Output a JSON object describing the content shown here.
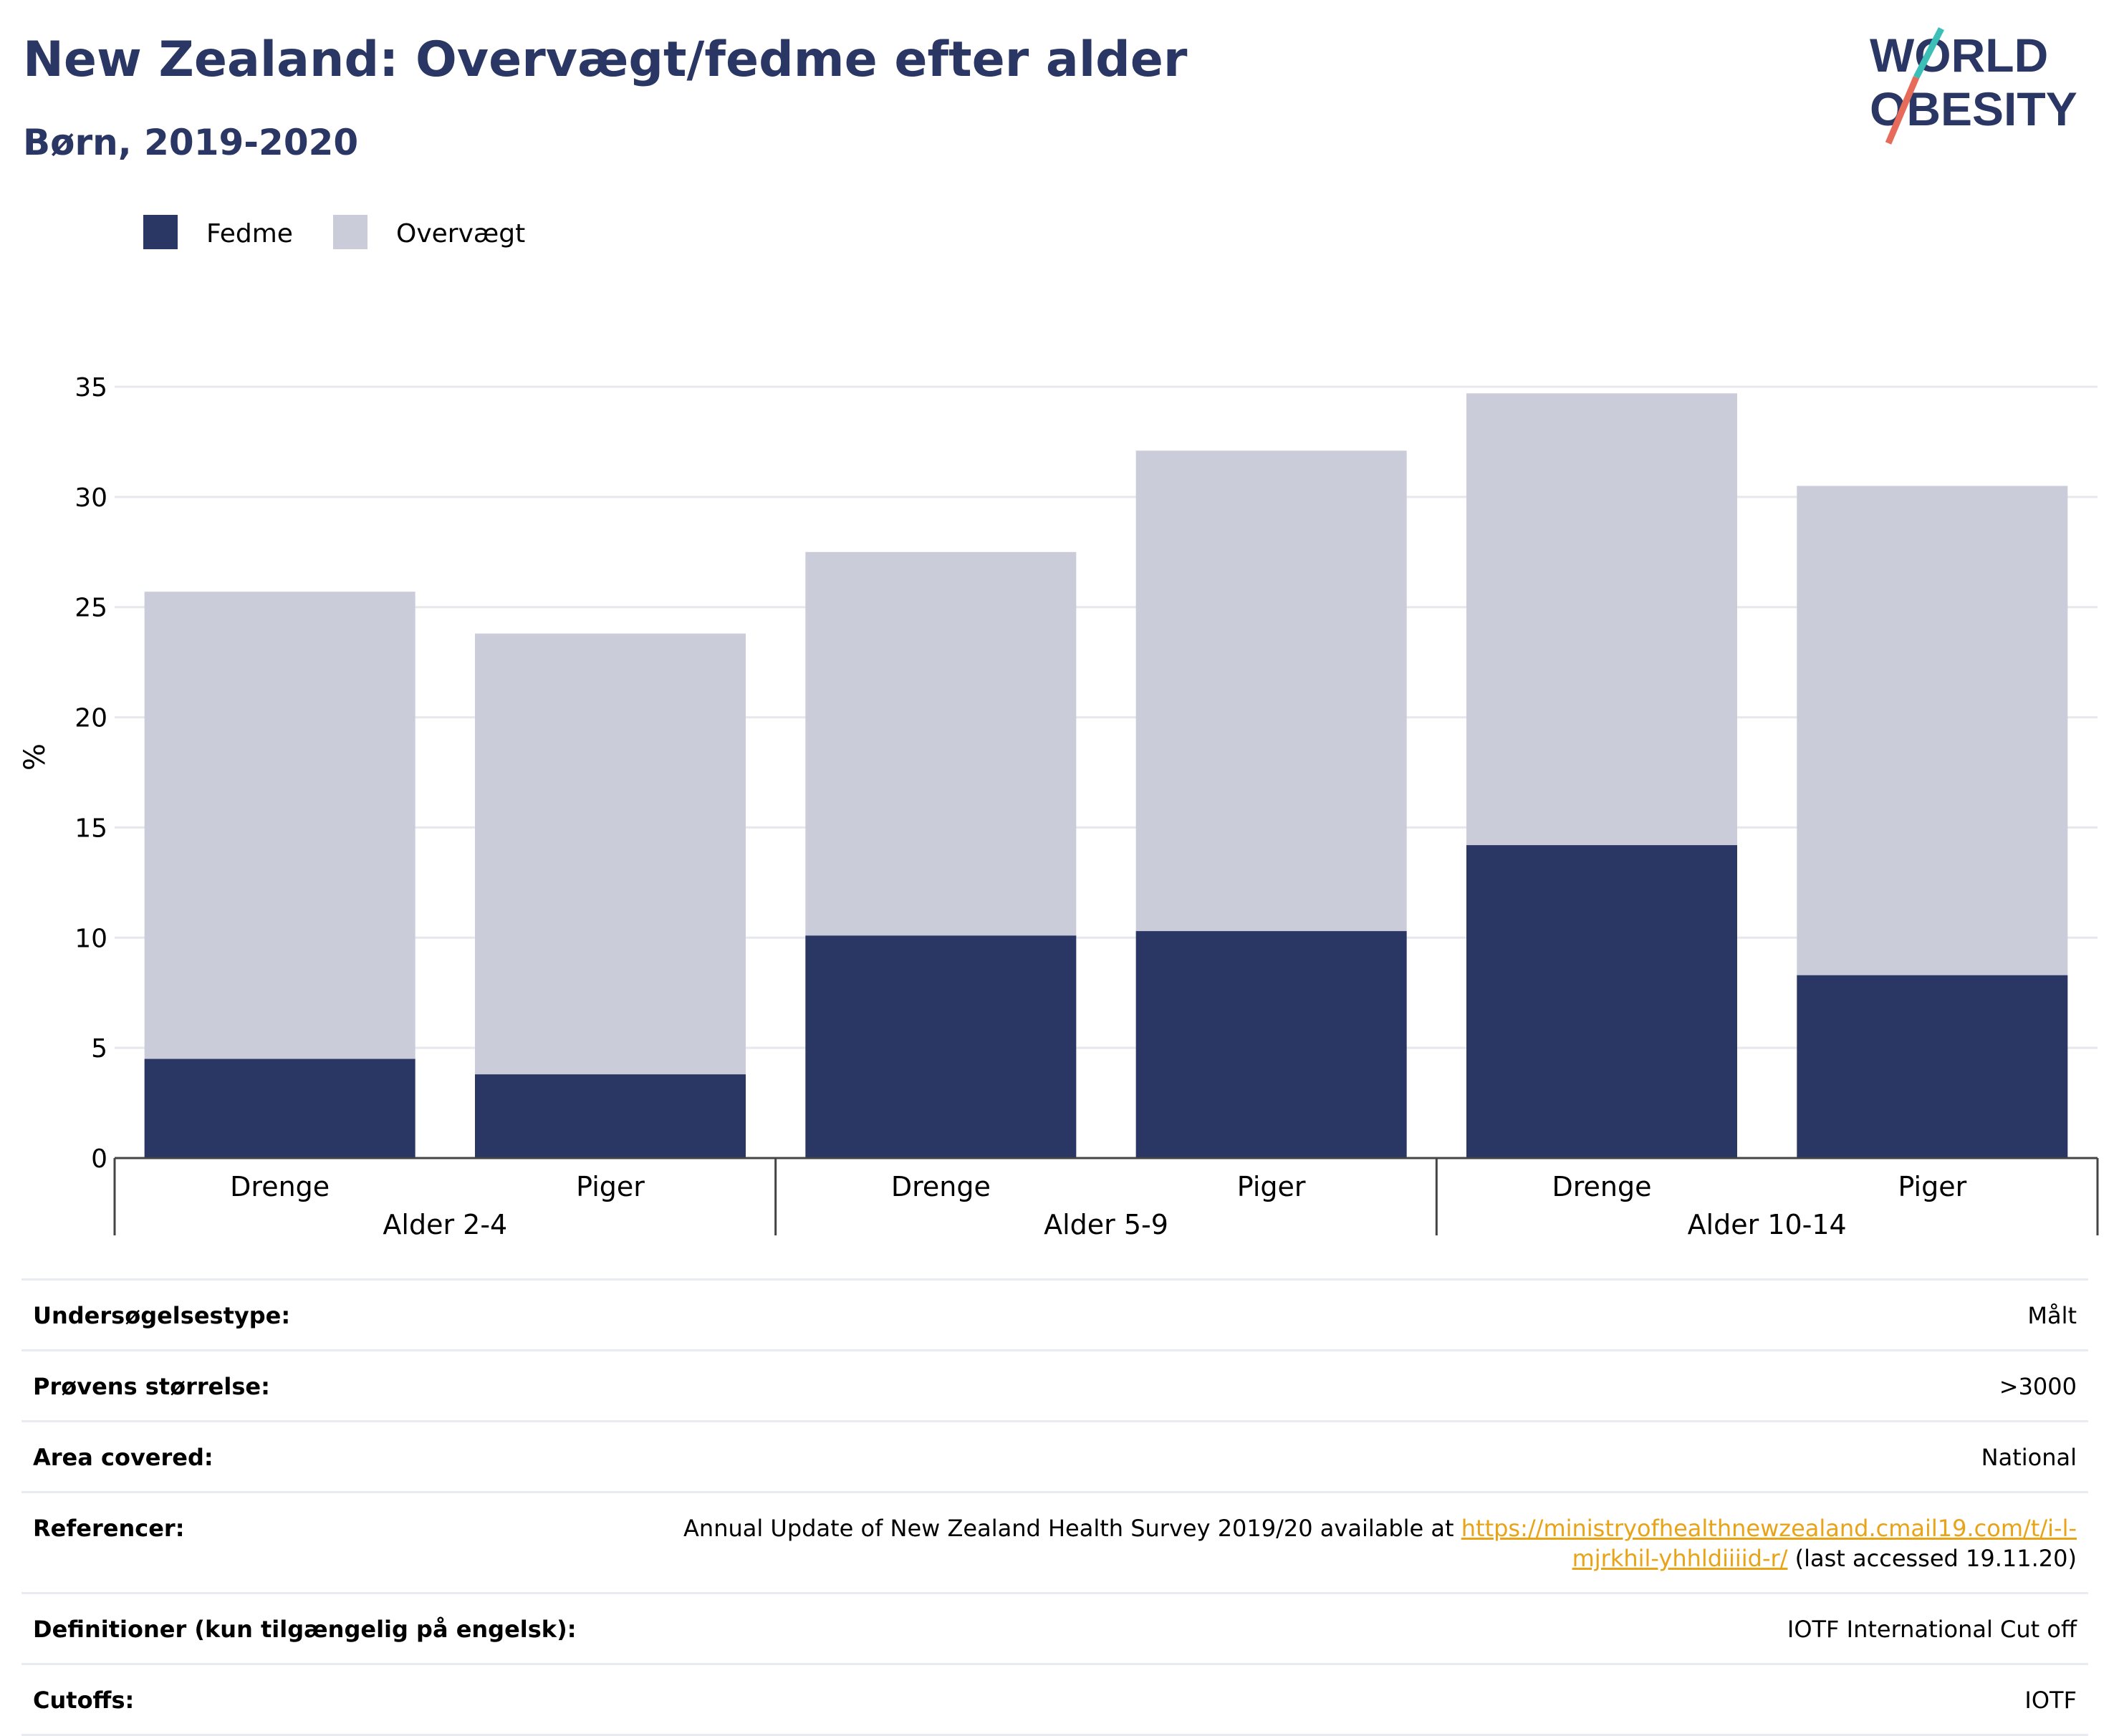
{
  "header": {
    "title": "New Zealand: Overvægt/fedme efter alder",
    "subtitle": "Børn, 2019-2020"
  },
  "logo": {
    "line1": "WORLD",
    "line2": "OBESITY"
  },
  "colors": {
    "fedme": "#2a3663",
    "overvaegt": "#cacdd9",
    "title": "#2a3663",
    "link": "#e8a317",
    "accent_teal": "#3bbfb7",
    "accent_red": "#e76b5a"
  },
  "chart_data": {
    "type": "bar",
    "stacked": true,
    "ylabel": "%",
    "ylim": [
      0,
      35
    ],
    "yticks": [
      0,
      5,
      10,
      15,
      20,
      25,
      30,
      35
    ],
    "grid": true,
    "legend_position": "top-left",
    "groups": [
      "Alder 2-4",
      "Alder 5-9",
      "Alder 10-14"
    ],
    "categories": [
      "Drenge",
      "Piger",
      "Drenge",
      "Piger",
      "Drenge",
      "Piger"
    ],
    "series": [
      {
        "name": "Fedme",
        "values": [
          4.5,
          3.8,
          10.1,
          10.3,
          14.2,
          8.3
        ]
      },
      {
        "name": "Overvægt",
        "values": [
          21.2,
          20.0,
          17.4,
          21.8,
          20.5,
          22.2
        ]
      }
    ],
    "totals": [
      25.7,
      23.8,
      27.5,
      32.1,
      34.7,
      30.5
    ]
  },
  "meta": {
    "rows": [
      {
        "label": "Undersøgelsestype:",
        "value": "Målt"
      },
      {
        "label": "Prøvens størrelse:",
        "value": ">3000"
      },
      {
        "label": "Area covered:",
        "value": "National"
      },
      {
        "label": "Referencer:",
        "value_prefix": "Annual Update of New Zealand Health Survey 2019/20 available at ",
        "value_link": "https://ministryofhealthnewzealand.cmail19.com/t/i-l-mjrkhil-yhhldiiiid-r/",
        "value_suffix": " (last accessed 19.11.20)"
      },
      {
        "label": "Definitioner (kun tilgængelig på engelsk):",
        "value": "IOTF International Cut off"
      },
      {
        "label": "Cutoffs:",
        "value": "IOTF"
      }
    ]
  }
}
